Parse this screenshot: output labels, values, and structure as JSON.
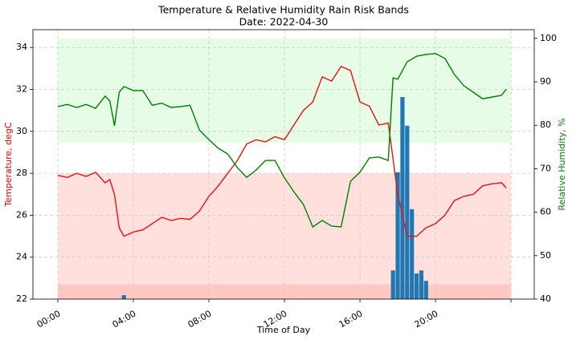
{
  "chart_data": {
    "type": "line",
    "title": "Temperature & Relative Humidity Rain Risk Bands",
    "subtitle": "Date: 2022-04-30",
    "x_label": "Time of Day",
    "y_label": "Temperature, degC",
    "y2_label": "Relative Humidity, %",
    "y_label_color": "#ff0000",
    "y2_label_color": "#008000",
    "xlim": [
      -1.32,
      25.23
    ],
    "xticks": [
      {
        "value": 0,
        "label": "00:00"
      },
      {
        "value": 4,
        "label": "04:00"
      },
      {
        "value": 8,
        "label": "08:00"
      },
      {
        "value": 12,
        "label": "12:00"
      },
      {
        "value": 16,
        "label": "16:00"
      },
      {
        "value": 20,
        "label": "20:00"
      },
      {
        "value": 24,
        "label": null
      }
    ],
    "ylim": [
      22,
      34.85
    ],
    "yticks": [
      22,
      24,
      26,
      28,
      30,
      32,
      34
    ],
    "y2lim": [
      40,
      102
    ],
    "y2ticks": [
      40,
      50,
      60,
      70,
      80,
      90,
      100
    ],
    "grid": true,
    "bands": [
      {
        "axis": "y",
        "x": [
          0,
          24
        ],
        "range": [
          22,
          28
        ],
        "color": "#ffe0dc"
      },
      {
        "axis": "y",
        "x": [
          0,
          24
        ],
        "range": [
          22,
          22.7
        ],
        "color": "#ffc8c2"
      },
      {
        "axis": "y2",
        "x": [
          0,
          24
        ],
        "range": [
          76,
          100
        ],
        "color": "#e6fce6"
      }
    ],
    "series": [
      {
        "kind": "bar",
        "axis": "y2",
        "color": "#1f77b4",
        "x": [
          3.5,
          17.75,
          18.0,
          18.25,
          18.5,
          18.75,
          19.0,
          19.25,
          19.5
        ],
        "values": [
          40.9,
          46.6,
          69.2,
          86.5,
          79.9,
          60.7,
          45.9,
          46.6,
          44.2
        ]
      },
      {
        "kind": "line",
        "axis": "y",
        "color": "#ee1111",
        "x": [
          0,
          0.5,
          1,
          1.5,
          2,
          2.5,
          2.75,
          3,
          3.25,
          3.5,
          4,
          4.5,
          5,
          5.5,
          6,
          6.5,
          7,
          7.5,
          8,
          8.5,
          9,
          9.5,
          10,
          10.5,
          11,
          11.5,
          12,
          12.5,
          13,
          13.5,
          14,
          14.5,
          15,
          15.5,
          16,
          16.5,
          17,
          17.5,
          18,
          18.5,
          19,
          19.5,
          20,
          20.5,
          21,
          21.5,
          22,
          22.5,
          23,
          23.5,
          23.75
        ],
        "values": [
          27.9,
          27.8,
          28.0,
          27.85,
          28.05,
          27.55,
          27.7,
          27.0,
          25.4,
          25.0,
          25.2,
          25.3,
          25.6,
          25.9,
          25.75,
          25.85,
          25.8,
          26.2,
          26.9,
          27.4,
          28.0,
          28.6,
          29.4,
          29.6,
          29.5,
          29.75,
          29.6,
          30.3,
          31.0,
          31.4,
          32.6,
          32.4,
          33.1,
          32.9,
          31.4,
          31.2,
          30.3,
          30.4,
          27.0,
          25.0,
          25.0,
          25.4,
          25.6,
          26.0,
          26.7,
          26.9,
          27.0,
          27.4,
          27.5,
          27.55,
          27.3
        ]
      },
      {
        "kind": "line",
        "axis": "y2",
        "color": "#008000",
        "x": [
          0,
          0.5,
          1,
          1.5,
          2,
          2.5,
          2.75,
          3,
          3.25,
          3.5,
          4,
          4.5,
          5,
          5.5,
          6,
          6.5,
          7,
          7.5,
          8,
          8.5,
          9,
          9.5,
          10,
          10.5,
          11,
          11.5,
          12,
          12.5,
          13,
          13.5,
          14,
          14.5,
          15,
          15.5,
          16,
          16.5,
          17,
          17.5,
          17.75,
          18,
          18.5,
          19,
          19.5,
          20,
          20.5,
          21,
          21.5,
          22,
          22.5,
          23,
          23.5,
          23.75
        ],
        "values": [
          84.3,
          84.8,
          84.1,
          84.8,
          83.9,
          86.7,
          85.6,
          79.9,
          87.6,
          88.9,
          88.0,
          88.0,
          84.6,
          85.1,
          84.1,
          84.3,
          84.6,
          78.9,
          76.7,
          74.7,
          73.4,
          70.3,
          68.0,
          69.7,
          71.9,
          71.9,
          67.9,
          64.7,
          61.8,
          56.6,
          58.1,
          56.8,
          56.6,
          67.1,
          69.2,
          72.5,
          72.7,
          71.9,
          90.9,
          90.6,
          94.6,
          95.9,
          96.3,
          96.5,
          95.4,
          91.7,
          89.1,
          87.6,
          86.1,
          86.5,
          86.9,
          88.3
        ]
      }
    ]
  }
}
